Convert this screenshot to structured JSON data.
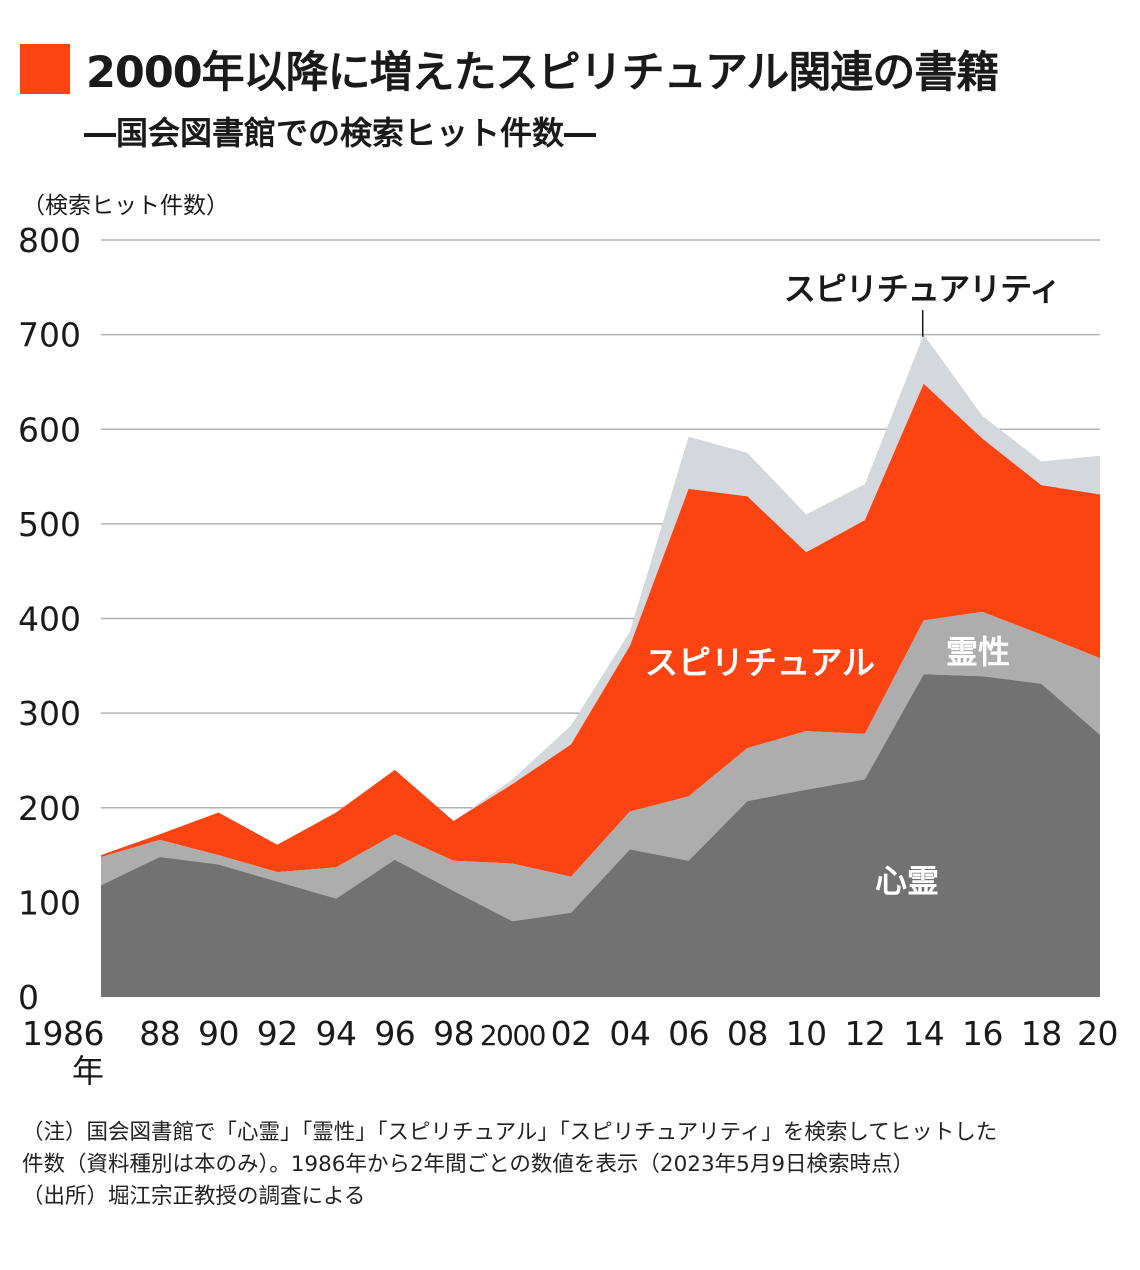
{
  "title": "2000年以降に増えたスピリチュアル関連の書籍",
  "subtitle": "―国会図書館での検索ヒット件数―",
  "unit_label": "（検索ヒット件数）",
  "colors": {
    "accent": "#fc4312",
    "shinrei": "#727272",
    "reisei": "#adadad",
    "spiritual": "#fc4312",
    "spirituality": "#d4d7dc",
    "grid": "#b3b3b3"
  },
  "chart_data": {
    "type": "area",
    "stacked": true,
    "x": [
      "1986",
      "88",
      "90",
      "92",
      "94",
      "96",
      "98",
      "2000",
      "02",
      "04",
      "06",
      "08",
      "10",
      "12",
      "14",
      "16",
      "18",
      "20"
    ],
    "x_unit_label": "年",
    "ylim": [
      0,
      800
    ],
    "yticks": [
      0,
      100,
      200,
      300,
      400,
      500,
      600,
      700,
      800
    ],
    "grid": "horizontal",
    "series": [
      {
        "name": "心霊",
        "color": "#727272",
        "values": [
          118,
          148,
          140,
          122,
          104,
          145,
          112,
          80,
          89,
          156,
          144,
          207,
          219,
          230,
          341,
          339,
          331,
          277
        ]
      },
      {
        "name": "霊性",
        "color": "#adadad",
        "values": [
          30,
          18,
          10,
          10,
          33,
          27,
          32,
          61,
          38,
          40,
          68,
          56,
          62,
          48,
          57,
          68,
          52,
          81
        ]
      },
      {
        "name": "スピリチュアル",
        "color": "#fc4312",
        "values": [
          2,
          6,
          45,
          29,
          58,
          68,
          42,
          84,
          140,
          175,
          325,
          266,
          189,
          226,
          250,
          183,
          158,
          173
        ]
      },
      {
        "name": "スピリチュアリティ",
        "color": "#d4d7dc",
        "values": [
          0,
          0,
          0,
          0,
          0,
          0,
          0,
          5,
          20,
          15,
          55,
          46,
          40,
          38,
          52,
          24,
          25,
          41
        ]
      }
    ],
    "labels": {
      "shinrei": "心霊",
      "reisei": "霊性",
      "spiritual": "スピリチュアル",
      "spirituality": "スピリチュアリティ"
    }
  },
  "notes": [
    "（注）国会図書館で「心霊」「霊性」「スピリチュアル」「スピリチュアリティ」を検索してヒットした",
    "件数（資料種別は本のみ）。1986年から2年間ごとの数値を表示（2023年5月9日検索時点）",
    "（出所）堀江宗正教授の調査による"
  ]
}
